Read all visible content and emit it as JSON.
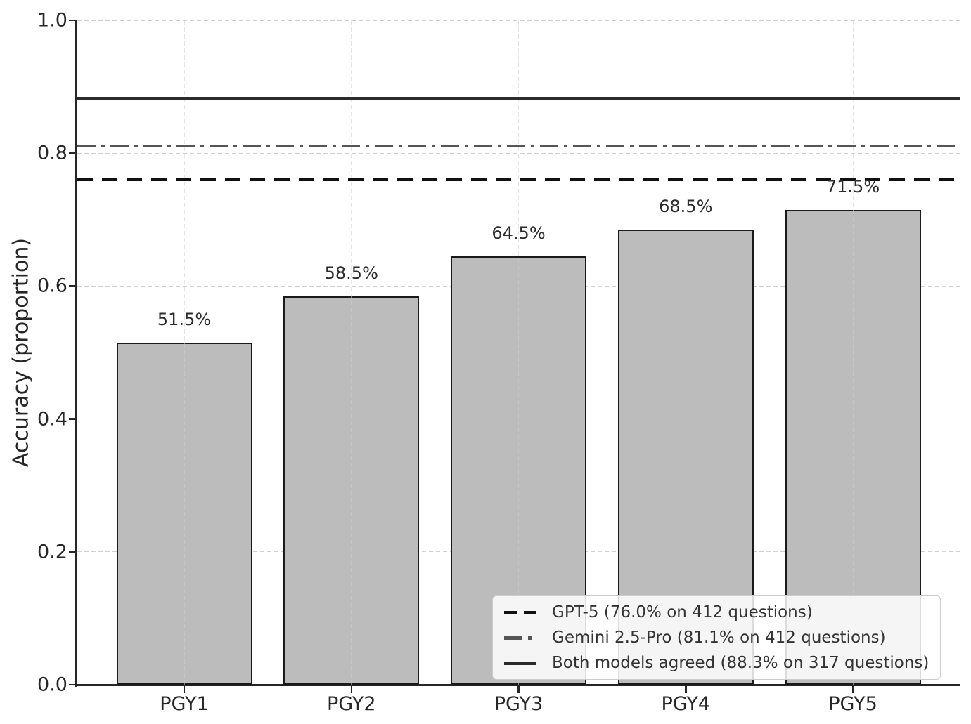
{
  "chart_data": {
    "type": "bar",
    "title": "",
    "xlabel": "",
    "ylabel": "Accuracy (proportion)",
    "ylim": [
      0.0,
      1.0
    ],
    "yticks": [
      "0.0",
      "0.2",
      "0.4",
      "0.6",
      "0.8",
      "1.0"
    ],
    "grid": true,
    "categories": [
      "PGY1",
      "PGY2",
      "PGY3",
      "PGY4",
      "PGY5"
    ],
    "values": [
      0.515,
      0.585,
      0.645,
      0.685,
      0.715
    ],
    "bar_labels": [
      "51.5%",
      "58.5%",
      "64.5%",
      "68.5%",
      "71.5%"
    ],
    "bar_color": "#bcbcbc",
    "bar_edge_color": "#1a1a1a",
    "reference_lines": [
      {
        "value": 0.76,
        "style": "dashed",
        "color": "#111111",
        "label": "GPT-5 (76.0% on 412 questions)"
      },
      {
        "value": 0.811,
        "style": "dashdot",
        "color": "#555555",
        "label": "Gemini 2.5-Pro (81.1% on 412 questions)"
      },
      {
        "value": 0.883,
        "style": "solid",
        "color": "#2b2b2b",
        "label": "Both models agreed (88.3% on 317 questions)"
      }
    ],
    "legend_position": "lower right"
  }
}
